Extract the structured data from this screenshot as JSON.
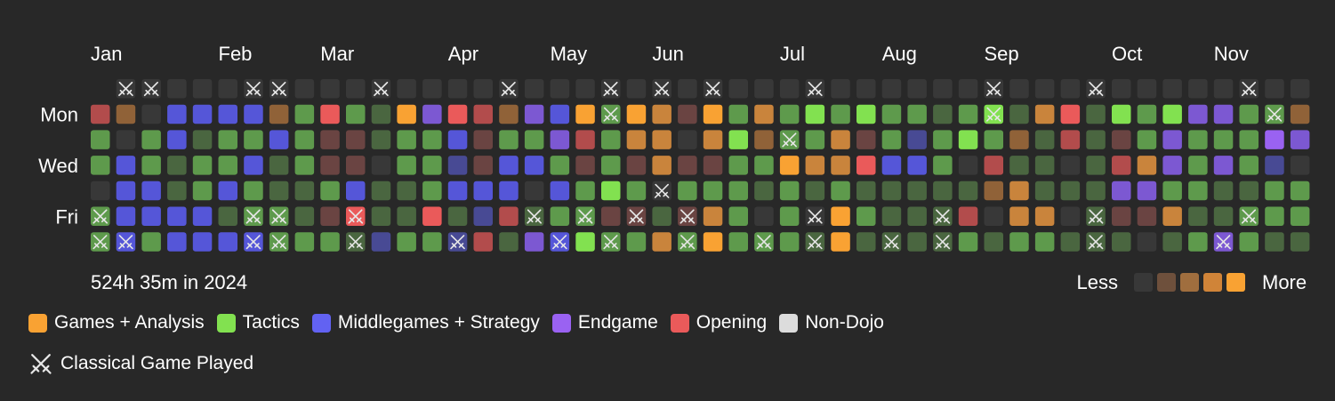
{
  "chart_data": {
    "type": "heatmap",
    "months": [
      {
        "label": "Jan",
        "week": 0
      },
      {
        "label": "Feb",
        "week": 5
      },
      {
        "label": "Mar",
        "week": 9
      },
      {
        "label": "Apr",
        "week": 14
      },
      {
        "label": "May",
        "week": 18
      },
      {
        "label": "Jun",
        "week": 22
      },
      {
        "label": "Jul",
        "week": 27
      },
      {
        "label": "Aug",
        "week": 31
      },
      {
        "label": "Sep",
        "week": 35
      },
      {
        "label": "Oct",
        "week": 40
      },
      {
        "label": "Nov",
        "week": 44
      }
    ],
    "weekday_labels": [
      "",
      "Mon",
      "",
      "Wed",
      "",
      "Fri",
      ""
    ],
    "palette": {
      "0": "#383838",
      "g": "#5e9a4c",
      "G": "#82e150",
      "h": "#4a6640",
      "b": "#5556d8",
      "B": "#6262f2",
      "p": "#7c58d2",
      "P": "#9a62f2",
      "r": "#ea5a5a",
      "R": "#b24c4c",
      "m": "#6a4442",
      "o": "#f9a233",
      "O": "#c9843c",
      "k": "#906238",
      "n": "#484a94"
    },
    "first_col_offset": 1,
    "grid": [
      "0Rgg0ggg0",
      "0k0bbbbg0",
      "00ggbbggg",
      "0bbhhbbnb",
      "0bhggbbbB",
      "0bggbhbbb",
      "0bgbggbbb",
      "0kbhhggbO",
      "0ggghhgpP",
      "0rmmgmgnp",
      "0gmmbrhpP",
      "0hh0hhnbb",
      "0ogghhgbb",
      "0pgggrgnb",
      "0rbnbhnbb",
      "0RmmbnRbb",
      "0kgbbRhbg",
      "0pgb0hpPg",
      "0bpgbgbnb",
      "0oRmggGgg",
      "0gggGmggg",
      "0oOmgmggg",
      "0OOO0hOgg",
      "0m0mgmggg",
      "0oOmgOooG",
      "0gGggggg0",
      "0Okgh0gbg",
      "0ggoggggg",
      "0GgOh0hgg",
      "0gOOgoogg",
      "0GmrhghGh",
      "0ggbhhhgg",
      "0gnbhhhgG",
      "0hgghhhgg",
      "0gG0hRgGg",
      "0GgRk0h0h",
      "0hkhOOg0h",
      "0OhhhOgOk",
      "0rR0h0hgh",
      "0hhhhhhRk",
      "0GmRpmhRp",
      "0ggOpm0h0",
      "0GppgOhgb",
      "0pggghgbp",
      "0pgphhpgp",
      "0ggghggOg",
      "0gPngghOg",
      "0kp0ggh0h"
    ],
    "classical_games": [
      [
        1,
        0
      ],
      [
        2,
        0
      ],
      [
        6,
        0
      ],
      [
        7,
        0
      ],
      [
        11,
        0
      ],
      [
        16,
        0
      ],
      [
        20,
        0
      ],
      [
        22,
        0
      ],
      [
        24,
        0
      ],
      [
        28,
        0
      ],
      [
        35,
        0
      ],
      [
        39,
        0
      ],
      [
        45,
        0
      ],
      [
        0,
        5
      ],
      [
        6,
        5
      ],
      [
        7,
        5
      ],
      [
        10,
        5
      ],
      [
        17,
        5
      ],
      [
        19,
        5
      ],
      [
        21,
        5
      ],
      [
        23,
        5
      ],
      [
        28,
        5
      ],
      [
        33,
        5
      ],
      [
        39,
        5
      ],
      [
        45,
        5
      ],
      [
        0,
        6
      ],
      [
        1,
        6
      ],
      [
        6,
        6
      ],
      [
        7,
        6
      ],
      [
        10,
        6
      ],
      [
        14,
        6
      ],
      [
        18,
        6
      ],
      [
        20,
        6
      ],
      [
        23,
        6
      ],
      [
        26,
        6
      ],
      [
        28,
        6
      ],
      [
        31,
        6
      ],
      [
        33,
        6
      ],
      [
        39,
        6
      ],
      [
        44,
        6
      ],
      [
        20,
        1
      ],
      [
        35,
        1
      ],
      [
        46,
        1
      ],
      [
        27,
        2
      ],
      [
        22,
        4
      ]
    ],
    "legend_scale": [
      "#383838",
      "#6e503c",
      "#a06e3e",
      "#d08438",
      "#f9a233"
    ]
  },
  "total_label": "524h 35m in 2024",
  "scale_less": "Less",
  "scale_more": "More",
  "categories": [
    {
      "label": "Games + Analysis",
      "color": "#f9a233"
    },
    {
      "label": "Tactics",
      "color": "#82e150"
    },
    {
      "label": "Middlegames + Strategy",
      "color": "#6262f2"
    },
    {
      "label": "Endgame",
      "color": "#9a62f2"
    },
    {
      "label": "Opening",
      "color": "#ea5a5a"
    },
    {
      "label": "Non-Dojo",
      "color": "#dcdcdc"
    }
  ],
  "classical_label": "Classical Game Played"
}
